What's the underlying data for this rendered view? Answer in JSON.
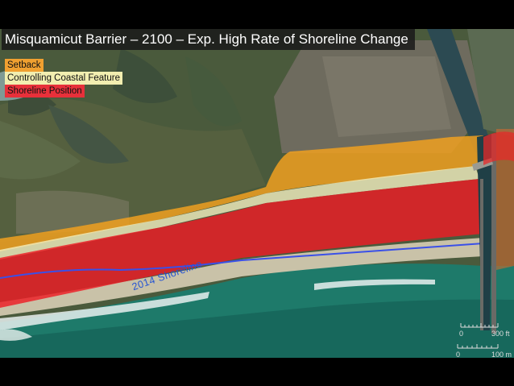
{
  "title": "Misquamicut Barrier – 2100 – Exp. High Rate of Shoreline Change",
  "legend": [
    {
      "label": "Setback",
      "color": "#f0a030"
    },
    {
      "label": "Controlling Coastal Feature",
      "color": "#f2eeb0"
    },
    {
      "label": "Shoreline Position",
      "color": "#e8303a"
    }
  ],
  "shoreline_label": "2014 Shoreline",
  "scale": {
    "feet_zero": "0",
    "feet_max": "300 ft",
    "meters_zero": "0",
    "meters_max": "100 m"
  },
  "colors": {
    "setback": "#f0a020",
    "coastal_feature": "#f4f0c0",
    "shoreline_position": "#ee1c24",
    "shoreline_2014": "#3a50e8"
  }
}
